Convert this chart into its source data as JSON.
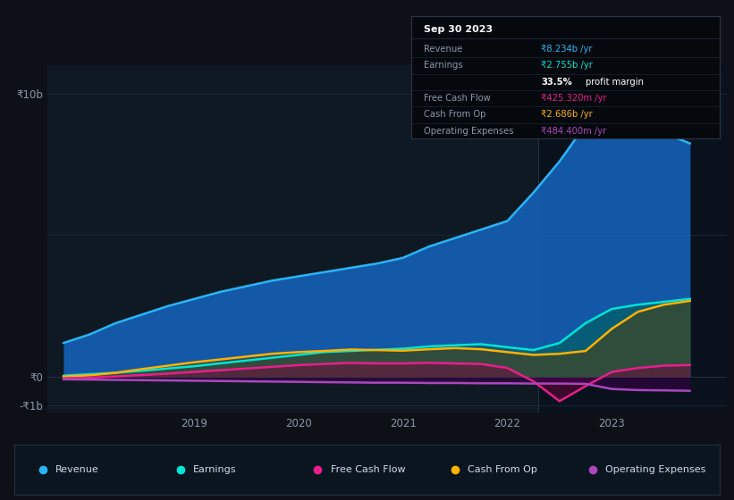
{
  "background_color": "#0d1117",
  "plot_bg_color": "#0f1923",
  "grid_color": "#1a2535",
  "ylabel_10b": "₹10b",
  "ylabel_0": "₹0",
  "ylabel_neg1b": "-₹1b",
  "x_ticks": [
    2019,
    2020,
    2021,
    2022,
    2023
  ],
  "xlim": [
    2017.6,
    2024.1
  ],
  "ylim": [
    -1250000000.0,
    11000000000.0
  ],
  "highlight_x_start": 2022.3,
  "highlight_x_end": 2024.1,
  "series": {
    "revenue": {
      "color": "#29b6f6",
      "fill_color": "#1565c0",
      "fill_alpha": 0.85,
      "label": "Revenue",
      "x": [
        2017.75,
        2018.0,
        2018.25,
        2018.5,
        2018.75,
        2019.0,
        2019.25,
        2019.5,
        2019.75,
        2020.0,
        2020.25,
        2020.5,
        2020.75,
        2021.0,
        2021.25,
        2021.5,
        2021.75,
        2022.0,
        2022.25,
        2022.5,
        2022.75,
        2023.0,
        2023.25,
        2023.5,
        2023.75
      ],
      "y": [
        1200000000.0,
        1500000000.0,
        1900000000.0,
        2200000000.0,
        2500000000.0,
        2750000000.0,
        3000000000.0,
        3200000000.0,
        3400000000.0,
        3550000000.0,
        3700000000.0,
        3850000000.0,
        4000000000.0,
        4200000000.0,
        4600000000.0,
        4900000000.0,
        5200000000.0,
        5500000000.0,
        6500000000.0,
        7600000000.0,
        8900000000.0,
        9700000000.0,
        9200000000.0,
        8600000000.0,
        8234000000.0
      ]
    },
    "earnings": {
      "color": "#00e5d4",
      "fill_color": "#005f5a",
      "fill_alpha": 0.6,
      "label": "Earnings",
      "x": [
        2017.75,
        2018.0,
        2018.25,
        2018.5,
        2018.75,
        2019.0,
        2019.25,
        2019.5,
        2019.75,
        2020.0,
        2020.25,
        2020.5,
        2020.75,
        2021.0,
        2021.25,
        2021.5,
        2021.75,
        2022.0,
        2022.25,
        2022.5,
        2022.75,
        2023.0,
        2023.25,
        2023.5,
        2023.75
      ],
      "y": [
        50000000.0,
        100000000.0,
        150000000.0,
        220000000.0,
        300000000.0,
        380000000.0,
        480000000.0,
        580000000.0,
        680000000.0,
        780000000.0,
        880000000.0,
        920000000.0,
        960000000.0,
        1000000000.0,
        1080000000.0,
        1120000000.0,
        1160000000.0,
        1050000000.0,
        950000000.0,
        1200000000.0,
        1900000000.0,
        2400000000.0,
        2550000000.0,
        2650000000.0,
        2755000000.0
      ]
    },
    "cash_from_op": {
      "color": "#ffb300",
      "fill_color": "#5a3d00",
      "fill_alpha": 0.5,
      "label": "Cash From Op",
      "x": [
        2017.75,
        2018.0,
        2018.25,
        2018.5,
        2018.75,
        2019.0,
        2019.25,
        2019.5,
        2019.75,
        2020.0,
        2020.25,
        2020.5,
        2020.75,
        2021.0,
        2021.25,
        2021.5,
        2021.75,
        2022.0,
        2022.25,
        2022.5,
        2022.75,
        2023.0,
        2023.25,
        2023.5,
        2023.75
      ],
      "y": [
        20000000.0,
        60000000.0,
        150000000.0,
        280000000.0,
        400000000.0,
        520000000.0,
        620000000.0,
        720000000.0,
        820000000.0,
        880000000.0,
        920000000.0,
        970000000.0,
        950000000.0,
        930000000.0,
        980000000.0,
        1020000000.0,
        980000000.0,
        880000000.0,
        780000000.0,
        820000000.0,
        920000000.0,
        1700000000.0,
        2300000000.0,
        2550000000.0,
        2686000000.0
      ]
    },
    "free_cash_flow": {
      "color": "#e91e8c",
      "fill_color": "#7b0040",
      "fill_alpha": 0.45,
      "label": "Free Cash Flow",
      "x": [
        2017.75,
        2018.0,
        2018.25,
        2018.5,
        2018.75,
        2019.0,
        2019.25,
        2019.5,
        2019.75,
        2020.0,
        2020.25,
        2020.5,
        2020.75,
        2021.0,
        2021.25,
        2021.5,
        2021.75,
        2022.0,
        2022.25,
        2022.5,
        2022.75,
        2023.0,
        2023.25,
        2023.5,
        2023.75
      ],
      "y": [
        -50000000.0,
        -20000000.0,
        20000000.0,
        70000000.0,
        120000000.0,
        180000000.0,
        240000000.0,
        300000000.0,
        360000000.0,
        420000000.0,
        460000000.0,
        500000000.0,
        480000000.0,
        480000000.0,
        500000000.0,
        480000000.0,
        460000000.0,
        320000000.0,
        -150000000.0,
        -850000000.0,
        -320000000.0,
        180000000.0,
        320000000.0,
        400000000.0,
        425000000.0
      ]
    },
    "operating_expenses": {
      "color": "#ab47bc",
      "fill_color": "#3d0050",
      "fill_alpha": 0.5,
      "label": "Operating Expenses",
      "x": [
        2017.75,
        2018.0,
        2018.25,
        2018.5,
        2018.75,
        2019.0,
        2019.25,
        2019.5,
        2019.75,
        2020.0,
        2020.25,
        2020.5,
        2020.75,
        2021.0,
        2021.25,
        2021.5,
        2021.75,
        2022.0,
        2022.25,
        2022.5,
        2022.75,
        2023.0,
        2023.25,
        2023.5,
        2023.75
      ],
      "y": [
        -80000000.0,
        -90000000.0,
        -100000000.0,
        -110000000.0,
        -120000000.0,
        -130000000.0,
        -140000000.0,
        -150000000.0,
        -160000000.0,
        -170000000.0,
        -180000000.0,
        -190000000.0,
        -200000000.0,
        -200000000.0,
        -210000000.0,
        -210000000.0,
        -220000000.0,
        -220000000.0,
        -230000000.0,
        -230000000.0,
        -240000000.0,
        -420000000.0,
        -460000000.0,
        -470000000.0,
        -484000000.0
      ]
    }
  },
  "tooltip": {
    "title": "Sep 30 2023",
    "bg_color": "#05080d",
    "border_color": "#2a3545",
    "label_color": "#8899aa",
    "value_rows": [
      {
        "label": "Revenue",
        "value": "₹8.234b /yr",
        "value_color": "#29b6f6"
      },
      {
        "label": "Earnings",
        "value": "₹2.755b /yr",
        "value_color": "#00e5d4"
      },
      {
        "label": "",
        "value": "33.5% profit margin",
        "value_color": "#ffffff"
      },
      {
        "label": "Free Cash Flow",
        "value": "₹425.320m /yr",
        "value_color": "#e91e8c"
      },
      {
        "label": "Cash From Op",
        "value": "₹2.686b /yr",
        "value_color": "#ffb300"
      },
      {
        "label": "Operating Expenses",
        "value": "₹484.400m /yr",
        "value_color": "#ab47bc"
      }
    ]
  },
  "legend_items": [
    {
      "label": "Revenue",
      "color": "#29b6f6"
    },
    {
      "label": "Earnings",
      "color": "#00e5d4"
    },
    {
      "label": "Free Cash Flow",
      "color": "#e91e8c"
    },
    {
      "label": "Cash From Op",
      "color": "#ffb300"
    },
    {
      "label": "Operating Expenses",
      "color": "#ab47bc"
    }
  ]
}
